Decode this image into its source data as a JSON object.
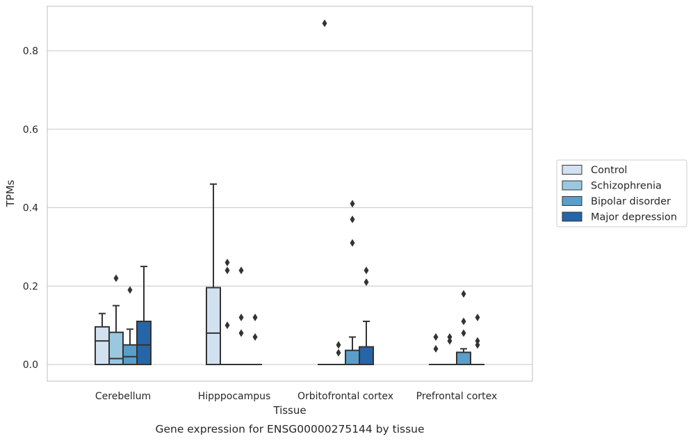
{
  "chart_data": {
    "type": "box",
    "xlabel": "Tissue",
    "ylabel": "TPMs",
    "caption": "Gene expression for ENSG00000275144 by tissue",
    "ylim": [
      -0.043,
      0.915
    ],
    "yticks": [
      "0.0",
      "0.2",
      "0.4",
      "0.6",
      "0.8"
    ],
    "grid": "horizontal",
    "legend_position": "right",
    "categories": [
      "Cerebellum",
      "Hipppocampus",
      "Orbitofrontal cortex",
      "Prefrontal cortex"
    ],
    "series": [
      {
        "name": "Control",
        "color": "#d2e1f0",
        "boxes": [
          {
            "whislo": 0.0,
            "q1": 0.0,
            "median": 0.06,
            "q3": 0.096,
            "whishi": 0.13,
            "fliers": []
          },
          {
            "whislo": 0.0,
            "q1": 0.0,
            "median": 0.08,
            "q3": 0.196,
            "whishi": 0.46,
            "fliers": []
          },
          {
            "whislo": 0.0,
            "q1": 0.0,
            "median": 0.0,
            "q3": 0.0,
            "whishi": 0.0,
            "fliers": [
              0.87
            ]
          },
          {
            "whislo": 0.0,
            "q1": 0.0,
            "median": 0.0,
            "q3": 0.0,
            "whishi": 0.0,
            "fliers": [
              0.04,
              0.07
            ]
          }
        ]
      },
      {
        "name": "Schizophrenia",
        "color": "#9ac8e0",
        "boxes": [
          {
            "whislo": 0.0,
            "q1": 0.0,
            "median": 0.015,
            "q3": 0.082,
            "whishi": 0.15,
            "fliers": [
              0.22
            ]
          },
          {
            "whislo": 0.0,
            "q1": 0.0,
            "median": 0.0,
            "q3": 0.0,
            "whishi": 0.0,
            "fliers": [
              0.1,
              0.24,
              0.26
            ]
          },
          {
            "whislo": 0.0,
            "q1": 0.0,
            "median": 0.0,
            "q3": 0.0,
            "whishi": 0.0,
            "fliers": [
              0.03,
              0.05
            ]
          },
          {
            "whislo": 0.0,
            "q1": 0.0,
            "median": 0.0,
            "q3": 0.0,
            "whishi": 0.0,
            "fliers": [
              0.06,
              0.07
            ]
          }
        ]
      },
      {
        "name": "Bipolar disorder",
        "color": "#5a9ec9",
        "boxes": [
          {
            "whislo": 0.0,
            "q1": 0.0,
            "median": 0.02,
            "q3": 0.05,
            "whishi": 0.09,
            "fliers": [
              0.19
            ]
          },
          {
            "whislo": 0.0,
            "q1": 0.0,
            "median": 0.0,
            "q3": 0.0,
            "whishi": 0.0,
            "fliers": [
              0.08,
              0.12,
              0.24
            ]
          },
          {
            "whislo": 0.0,
            "q1": 0.0,
            "median": 0.0,
            "q3": 0.036,
            "whishi": 0.07,
            "fliers": [
              0.31,
              0.37,
              0.41
            ]
          },
          {
            "whislo": 0.0,
            "q1": 0.0,
            "median": 0.0,
            "q3": 0.031,
            "whishi": 0.04,
            "fliers": [
              0.08,
              0.11,
              0.18
            ]
          }
        ]
      },
      {
        "name": "Major depression",
        "color": "#2565a8",
        "boxes": [
          {
            "whislo": 0.0,
            "q1": 0.0,
            "median": 0.05,
            "q3": 0.11,
            "whishi": 0.25,
            "fliers": []
          },
          {
            "whislo": 0.0,
            "q1": 0.0,
            "median": 0.0,
            "q3": 0.0,
            "whishi": 0.0,
            "fliers": [
              0.07,
              0.12
            ]
          },
          {
            "whislo": 0.0,
            "q1": 0.0,
            "median": 0.0,
            "q3": 0.045,
            "whishi": 0.11,
            "fliers": [
              0.21,
              0.24
            ]
          },
          {
            "whislo": 0.0,
            "q1": 0.0,
            "median": 0.0,
            "q3": 0.0,
            "whishi": 0.0,
            "fliers": [
              0.05,
              0.06,
              0.12
            ]
          }
        ]
      }
    ],
    "colors": {
      "axis": "#cccccc",
      "grid": "#d0d0d0",
      "line": "#333333"
    }
  }
}
